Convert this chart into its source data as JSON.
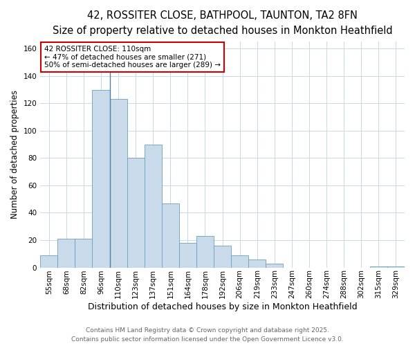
{
  "title": "42, ROSSITER CLOSE, BATHPOOL, TAUNTON, TA2 8FN",
  "subtitle": "Size of property relative to detached houses in Monkton Heathfield",
  "xlabel": "Distribution of detached houses by size in Monkton Heathfield",
  "ylabel": "Number of detached properties",
  "categories": [
    "55sqm",
    "68sqm",
    "82sqm",
    "96sqm",
    "110sqm",
    "123sqm",
    "137sqm",
    "151sqm",
    "164sqm",
    "178sqm",
    "192sqm",
    "206sqm",
    "219sqm",
    "233sqm",
    "247sqm",
    "260sqm",
    "274sqm",
    "288sqm",
    "302sqm",
    "315sqm",
    "329sqm"
  ],
  "values": [
    9,
    21,
    21,
    130,
    123,
    80,
    90,
    47,
    18,
    23,
    16,
    9,
    6,
    3,
    0,
    0,
    0,
    0,
    0,
    1,
    1
  ],
  "bar_color": "#c9daea",
  "bar_edge_color": "#6a9fc0",
  "vline_index": 4,
  "vline_color": "#5080a0",
  "annotation_text": "42 ROSSITER CLOSE: 110sqm\n← 47% of detached houses are smaller (271)\n50% of semi-detached houses are larger (289) →",
  "annotation_box_facecolor": "#ffffff",
  "annotation_box_edgecolor": "#cc0000",
  "ylim": [
    0,
    165
  ],
  "yticks": [
    0,
    20,
    40,
    60,
    80,
    100,
    120,
    140,
    160
  ],
  "footnote": "Contains HM Land Registry data © Crown copyright and database right 2025.\nContains public sector information licensed under the Open Government Licence v3.0.",
  "bg_color": "#ffffff",
  "grid_color": "#c8d8e8",
  "title_fontsize": 10.5,
  "subtitle_fontsize": 9.5,
  "xlabel_fontsize": 9,
  "ylabel_fontsize": 8.5,
  "tick_fontsize": 7.5,
  "annotation_fontsize": 7.5,
  "footnote_fontsize": 6.5
}
